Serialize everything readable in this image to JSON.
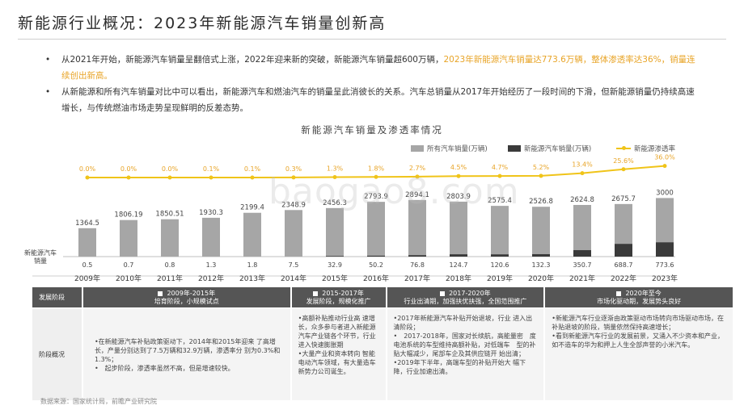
{
  "title": "新能源行业概况：2023年新能源汽车销量创新高",
  "bullets": [
    {
      "text": "从2021年开始，新能源汽车销量呈翻倍式上涨，2022年迎来新的突破，新能源汽车销量超600万辆，",
      "highlight": "2023年新能源汽车销量达773.6万辆，整体渗透率达36%，销量连续创出新高。"
    },
    {
      "text": "从新能源和所有汽车销量对比中可以看出，新能源汽车和燃油汽车的销量呈此消彼长的关系。汽车总销量从2017年开始经历了一段时间的下滑，但新能源销量仍持续高速增长，与传统燃油市场走势呈现鲜明的反差态势。"
    }
  ],
  "watermark": "baogao8.com",
  "chart_data": {
    "type": "bar",
    "title": "新能源汽车销量及渗透率情况",
    "categories": [
      "2009年",
      "2010年",
      "2011年",
      "2012年",
      "2013年",
      "2014年",
      "2015年",
      "2016年",
      "2017年",
      "2018年",
      "2019年",
      "2020年",
      "2021年",
      "2022年",
      "2023年"
    ],
    "series": [
      {
        "name": "所有汽车销量(万辆)",
        "color": "#a6a6a6",
        "values": [
          1364.5,
          1806.19,
          1850.51,
          1930.3,
          2199.4,
          2348.9,
          2456.3,
          2793.9,
          2894.1,
          2803.9,
          2575.4,
          2526.8,
          2624.8,
          2675.7,
          3000
        ],
        "labels": [
          "1364.5",
          "1806.19",
          "1850.51",
          "1930.3",
          "2199.4",
          "2348.9",
          "2456.3",
          "2793.9",
          "2894.1",
          "2803.9",
          "2575.4",
          "2526.8",
          "2624.8",
          "2675.7",
          "3000"
        ]
      },
      {
        "name": "新能源汽车销量(万辆)",
        "color": "#3a3a3a",
        "values": [
          0.5,
          0.7,
          0.8,
          1.3,
          1.8,
          7.5,
          32.9,
          50.2,
          76.8,
          124.7,
          120.6,
          132.3,
          350.7,
          688.7,
          773.6
        ],
        "labels": [
          "0.5",
          "0.7",
          "0.8",
          "1.3",
          "1.8",
          "7.5",
          "32.9",
          "50.2",
          "76.8",
          "124.7",
          "120.6",
          "132.3",
          "350.7",
          "688.7",
          "773.6"
        ]
      },
      {
        "name": "新能源渗透率",
        "color": "#f0c419",
        "type": "line",
        "values": [
          0.0,
          0.0,
          0.0,
          0.1,
          0.1,
          0.3,
          1.3,
          1.8,
          2.7,
          4.5,
          4.7,
          5.2,
          13.4,
          25.6,
          36.0
        ],
        "labels": [
          "0.0%",
          "0.0%",
          "0.0%",
          "0.1%",
          "0.1%",
          "0.3%",
          "1.3%",
          "1.8%",
          "2.7%",
          "4.5%",
          "4.7%",
          "5.2%",
          "13.4%",
          "25.6%",
          "36.0%"
        ]
      }
    ],
    "axis_label_nev": "新能源汽车销量",
    "ylim": [
      0,
      3200
    ]
  },
  "table": {
    "row_headers": [
      "发展阶段",
      "阶段概况"
    ],
    "stages": [
      {
        "period": "2009年-2015年",
        "name": "培育阶段，小规模试点",
        "body": "•在新能源汽车补贴政策驱动下，2014年和2015年迎来 了高增长，产量分别达到了7.5万辆和32.9万辆，渗透率分 别为0.3%和1.3%；\n•　起步阶段，渗透率虽然不高，但是增速较快。"
      },
      {
        "period": "2015-2017年",
        "name": "发展阶段，规模化推广",
        "body": "•高额补贴推动行业高 速增长，众多参与者进入新能源汽车产业链各个环节，行业进入快速膨胀期\n•大量产业和资本转向 智能电动汽车领域，有大量造车新势力公司诞生。"
      },
      {
        "period": "2017-2020年",
        "name": "行业出清期，加强扶优扶强，全国范围推广",
        "body": "•2017年新能源汽车补贴开始退坡，行业 进入出清阶段；\n•　2017-2018年，国家对长续航，高能量密　度电池系统的车型维持高额补贴，对低端车　型的补贴大幅减少，尾部车企及其供应链开 始出清；\n•2019年下半年，高端车型的补贴开始大 幅下降，行业加速出清。"
      },
      {
        "period": "2020年至今",
        "name": "市场化驱动期，发展势头良好",
        "body": "•新能源汽车行业逐渐由政策驱动市场转向市场驱动市场，在补贴退坡的阶段，销量依然保持高速增长；\n•看到新能源汽车行业的发展前景，又涌入不少资本和产业，如不造车的华为和押上人生全部声誉的小米汽车。"
      }
    ]
  },
  "source": "数据来源：国家统计局，前瞻产业研究院"
}
